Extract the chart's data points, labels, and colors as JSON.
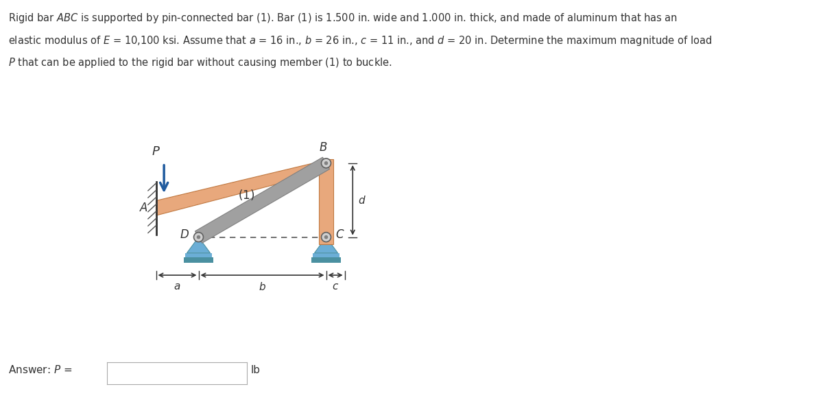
{
  "title_text": "Rigid bar ABC is supported by pin-connected bar (1). Bar (1) is 1.500 in. wide and 1.000 in. thick, and made of aluminum that has an\nelastic modulus of E = 10,100 ksi. Assume that a = 16 in., b = 26 in., c = 11 in., and d = 20 in. Determine the maximum magnitude of load\nP that can be applied to the rigid bar without causing member (1) to buckle.",
  "bg_color": "#ffffff",
  "bar_color": "#E8A87C",
  "bar_color2": "#D4956A",
  "member1_color": "#A0A0A0",
  "support_color": "#6BAED6",
  "support_color2": "#4A90A0",
  "arrow_color": "#1F5A9E",
  "text_color": "#333333",
  "dashed_color": "#555555",
  "answer_box_color": "#4A90D9",
  "answer_text_color": "#ffffff"
}
